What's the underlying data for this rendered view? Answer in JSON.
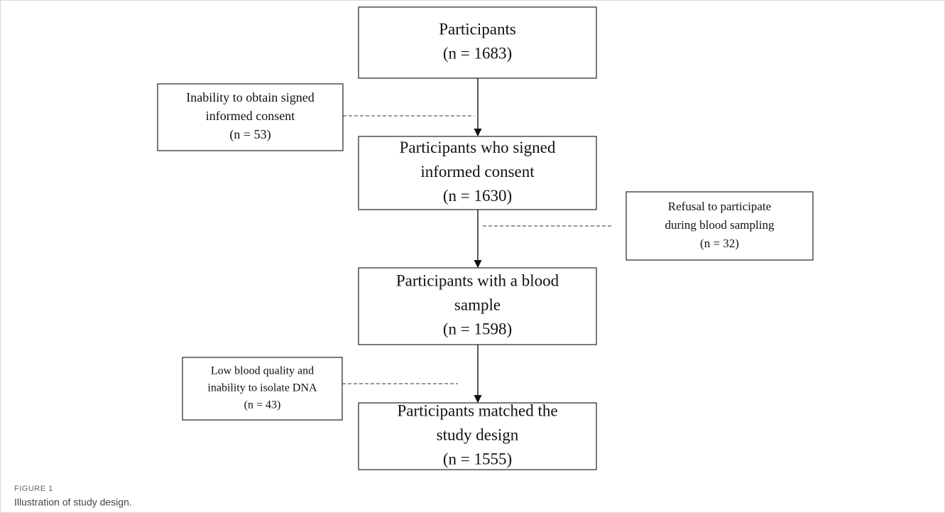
{
  "nodes": [
    {
      "lines": [
        "Participants"
      ],
      "count": "(n = 1683)"
    },
    {
      "lines": [
        "Participants who signed",
        "informed consent"
      ],
      "count": "(n = 1630)"
    },
    {
      "lines": [
        "Participants with a blood",
        "sample"
      ],
      "count": "(n = 1598)"
    },
    {
      "lines": [
        "Participants matched the",
        "study design"
      ],
      "count": "(n = 1555)"
    }
  ],
  "exclusions": [
    {
      "lines": [
        "Inability to obtain signed",
        "informed consent"
      ],
      "count": "(n = 53)"
    },
    {
      "lines": [
        "Refusal to participate",
        "during blood sampling"
      ],
      "count": "(n = 32)"
    },
    {
      "lines": [
        "Low blood quality and",
        "inability to isolate DNA"
      ],
      "count": "(n = 43)"
    }
  ],
  "caption": {
    "label": "FIGURE 1",
    "text": "Illustration of study design."
  }
}
